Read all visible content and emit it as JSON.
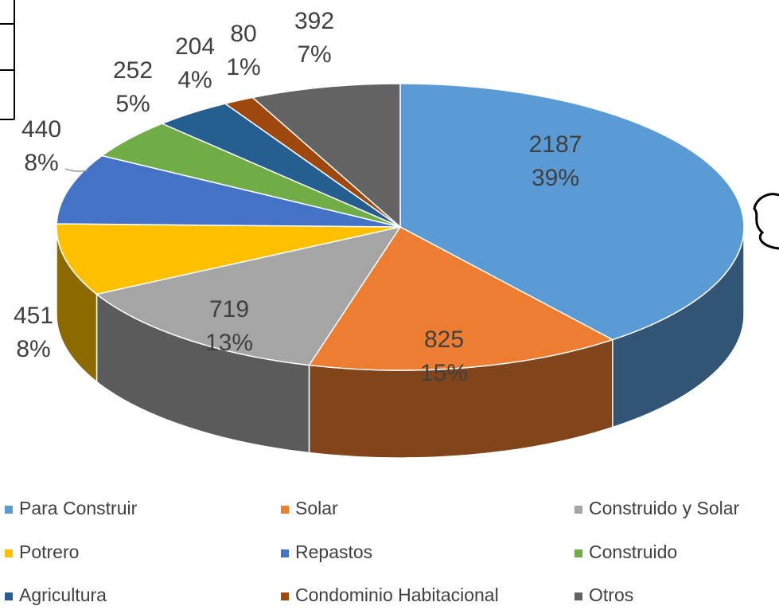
{
  "chart_data": {
    "type": "pie3d",
    "categories": [
      "Para Construir",
      "Solar",
      "Construido y Solar",
      "Potrero",
      "Repastos",
      "Construido",
      "Agricultura",
      "Condominio Habitacional",
      "Otros"
    ],
    "values": [
      2187,
      825,
      719,
      451,
      440,
      252,
      204,
      80,
      392
    ],
    "percent_labels": [
      "39%",
      "15%",
      "13%",
      "8%",
      "8%",
      "5%",
      "4%",
      "1%",
      "7%"
    ],
    "colors": [
      "#5b9bd5",
      "#ed7d31",
      "#a5a5a5",
      "#ffc000",
      "#4472c4",
      "#70ad47",
      "#255e91",
      "#9e480e",
      "#636363"
    ],
    "legend": "bottom"
  }
}
